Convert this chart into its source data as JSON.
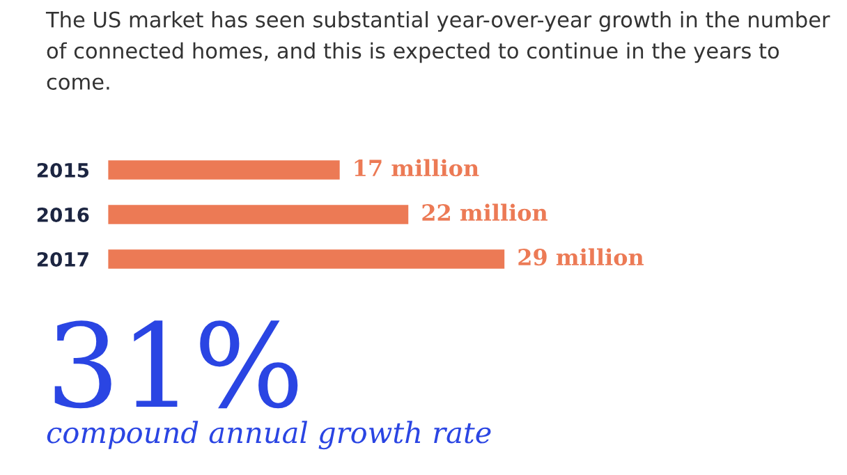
{
  "chart_data": {
    "type": "bar",
    "orientation": "horizontal",
    "title": "The US market has seen substantial year-over-year growth in the number of connected homes, and this is expected to continue in the years to come.",
    "categories": [
      "2015",
      "2016",
      "2017"
    ],
    "values": [
      17,
      22,
      29
    ],
    "value_labels": [
      "17 million",
      "22 million",
      "29 million"
    ],
    "color": "#ec7a55",
    "annotations": [
      "31%",
      "compound annual growth rate"
    ],
    "grid": false,
    "legend": false
  }
}
